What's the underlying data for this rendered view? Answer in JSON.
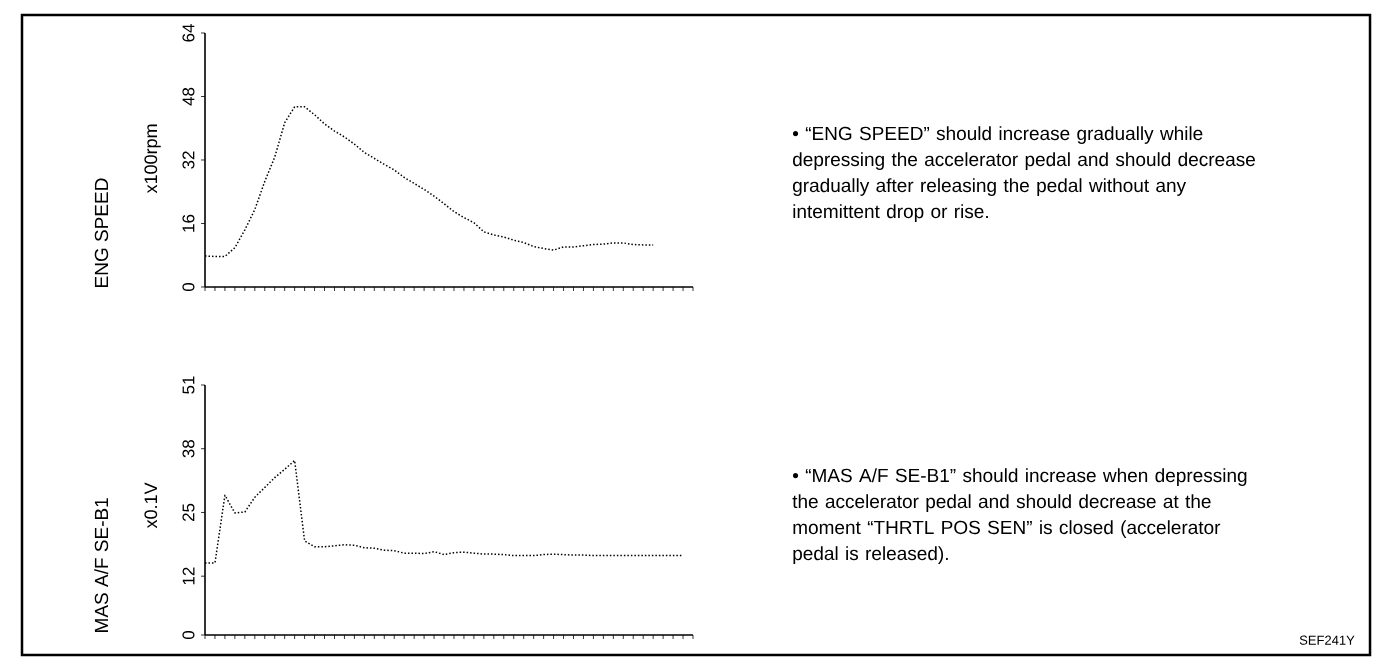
{
  "chart_data": [
    {
      "type": "line",
      "ylabel": "ENG SPEED",
      "annotations": [
        "x100rpm",
        "• “ENG SPEED” should increase gradually while depressing the accelerator pedal and should decrease gradually after releasing the pedal without any intemittent drop or rise."
      ],
      "categories": [
        null,
        null,
        null,
        null,
        null,
        null,
        null,
        null,
        null,
        null,
        null,
        null,
        null,
        null,
        null,
        null,
        null,
        null,
        null,
        null,
        null,
        null,
        null,
        null,
        null,
        null,
        null,
        null,
        null,
        null,
        null,
        null,
        null,
        null,
        null,
        null,
        null,
        null,
        null,
        null,
        null,
        null,
        null,
        null,
        null,
        null,
        null,
        null,
        null,
        null
      ],
      "values": [
        7.8,
        7.7,
        7.7,
        9.9,
        14.4,
        19.5,
        26.6,
        32.7,
        41.4,
        45.4,
        45.4,
        43.4,
        41.1,
        39.3,
        37.8,
        36.0,
        33.9,
        32.4,
        30.9,
        29.5,
        27.6,
        26.1,
        24.6,
        22.9,
        21.0,
        19.0,
        17.5,
        16.2,
        13.9,
        13.1,
        12.6,
        11.8,
        11.2,
        10.2,
        9.7,
        9.3,
        10.1,
        10.1,
        10.4,
        10.7,
        10.8,
        11.1,
        11.1,
        10.7,
        10.6,
        10.6,
        null,
        null,
        null,
        null
      ],
      "color": "#000000",
      "line_style": "dotted",
      "marker": "none",
      "ylim": [
        0,
        64
      ],
      "yticks": [
        0,
        16,
        32,
        48,
        64
      ],
      "tick_labels": "y"
    },
    {
      "type": "line",
      "ylabel": "MAS A/F SE-B1",
      "annotations": [
        "x0.1V",
        "• “MAS A/F SE-B1” should increase when depressing the accelerator pedal and should decrease at the moment “THRTL POS SEN” is closed (accelerator pedal is released).",
        "SEF241Y"
      ],
      "categories": [
        null,
        null,
        null,
        null,
        null,
        null,
        null,
        null,
        null,
        null,
        null,
        null,
        null,
        null,
        null,
        null,
        null,
        null,
        null,
        null,
        null,
        null,
        null,
        null,
        null,
        null,
        null,
        null,
        null,
        null,
        null,
        null,
        null,
        null,
        null,
        null,
        null,
        null,
        null,
        null,
        null,
        null,
        null,
        null,
        null,
        null,
        null,
        null,
        null,
        null
      ],
      "values": [
        14.7,
        14.7,
        28.5,
        24.9,
        25.1,
        28.1,
        30.1,
        32.1,
        33.8,
        35.6,
        19.2,
        18.0,
        18.0,
        18.2,
        18.4,
        18.3,
        17.8,
        17.7,
        17.3,
        17.2,
        16.7,
        16.7,
        16.6,
        17.0,
        16.4,
        16.8,
        16.9,
        16.7,
        16.5,
        16.5,
        16.4,
        16.2,
        16.2,
        16.2,
        16.4,
        16.5,
        16.4,
        16.3,
        16.3,
        16.2,
        16.2,
        16.2,
        16.2,
        16.2,
        16.2,
        16.2,
        16.2,
        16.2,
        16.2,
        null
      ],
      "color": "#000000",
      "line_style": "dotted",
      "marker": "none",
      "ylim": [
        0,
        51
      ],
      "yticks": [
        0,
        12,
        25,
        38,
        51
      ],
      "tick_labels": "y"
    }
  ]
}
